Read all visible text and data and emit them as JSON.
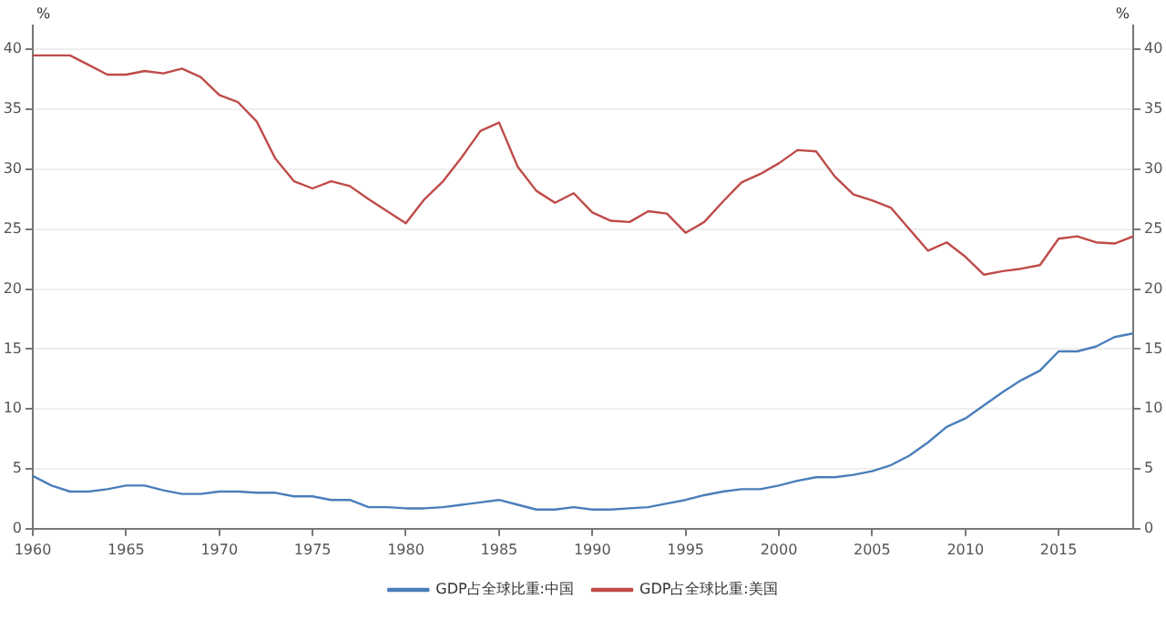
{
  "chart_data": {
    "type": "line",
    "ylabel": "%",
    "y2label": "%",
    "x": [
      1960,
      1961,
      1962,
      1963,
      1964,
      1965,
      1966,
      1967,
      1968,
      1969,
      1970,
      1971,
      1972,
      1973,
      1974,
      1975,
      1976,
      1977,
      1978,
      1979,
      1980,
      1981,
      1982,
      1983,
      1984,
      1985,
      1986,
      1987,
      1988,
      1989,
      1990,
      1991,
      1992,
      1993,
      1994,
      1995,
      1996,
      1997,
      1998,
      1999,
      2000,
      2001,
      2002,
      2003,
      2004,
      2005,
      2006,
      2007,
      2008,
      2009,
      2010,
      2011,
      2012,
      2013,
      2014,
      2015,
      2016,
      2017,
      2018,
      2019
    ],
    "series": [
      {
        "name": "GDP占全球比重:中国",
        "color": "#4a7ebb",
        "values": [
          4.4,
          3.6,
          3.1,
          3.1,
          3.3,
          3.6,
          3.6,
          3.2,
          2.9,
          2.9,
          3.1,
          3.1,
          3.0,
          3.0,
          2.7,
          2.7,
          2.4,
          2.4,
          1.8,
          1.8,
          1.7,
          1.7,
          1.8,
          2.0,
          2.2,
          2.4,
          2.0,
          1.6,
          1.6,
          1.8,
          1.6,
          1.6,
          1.7,
          1.8,
          2.1,
          2.4,
          2.8,
          3.1,
          3.3,
          3.3,
          3.6,
          4.0,
          4.3,
          4.3,
          4.5,
          4.8,
          5.3,
          6.1,
          7.2,
          8.5,
          9.2,
          10.3,
          11.4,
          12.4,
          13.2,
          14.8,
          14.8,
          15.2,
          16.0,
          16.3
        ]
      },
      {
        "name": "GDP占全球比重:美国",
        "color": "#be4b48",
        "values": [
          39.5,
          39.5,
          39.5,
          38.7,
          37.9,
          37.9,
          38.2,
          38.0,
          38.4,
          37.7,
          36.2,
          35.6,
          34.0,
          30.9,
          29.0,
          28.4,
          29.0,
          28.6,
          27.5,
          26.5,
          25.5,
          27.5,
          29.0,
          31.0,
          33.2,
          33.9,
          30.2,
          28.2,
          27.2,
          28.0,
          26.4,
          25.7,
          25.6,
          26.5,
          26.3,
          24.7,
          25.6,
          27.3,
          28.9,
          29.6,
          30.5,
          31.6,
          31.5,
          29.4,
          27.9,
          27.4,
          26.8,
          25.0,
          23.2,
          23.9,
          22.7,
          21.2,
          21.5,
          21.7,
          22.0,
          24.2,
          24.4,
          23.9,
          23.8,
          24.4
        ]
      }
    ],
    "xlim": [
      1960,
      2019
    ],
    "xticks": [
      1960,
      1965,
      1970,
      1975,
      1980,
      1985,
      1990,
      1995,
      2000,
      2005,
      2010,
      2015
    ],
    "ylim": [
      0,
      42
    ],
    "yticks": [
      0,
      5,
      10,
      15,
      20,
      25,
      30,
      35,
      40
    ],
    "y2lim": [
      0,
      42
    ],
    "y2ticks": [
      0,
      5,
      10,
      15,
      20,
      25,
      30,
      35,
      40
    ],
    "grid": "y",
    "legend": "bottom",
    "marker": "none",
    "line_style": "solid"
  }
}
